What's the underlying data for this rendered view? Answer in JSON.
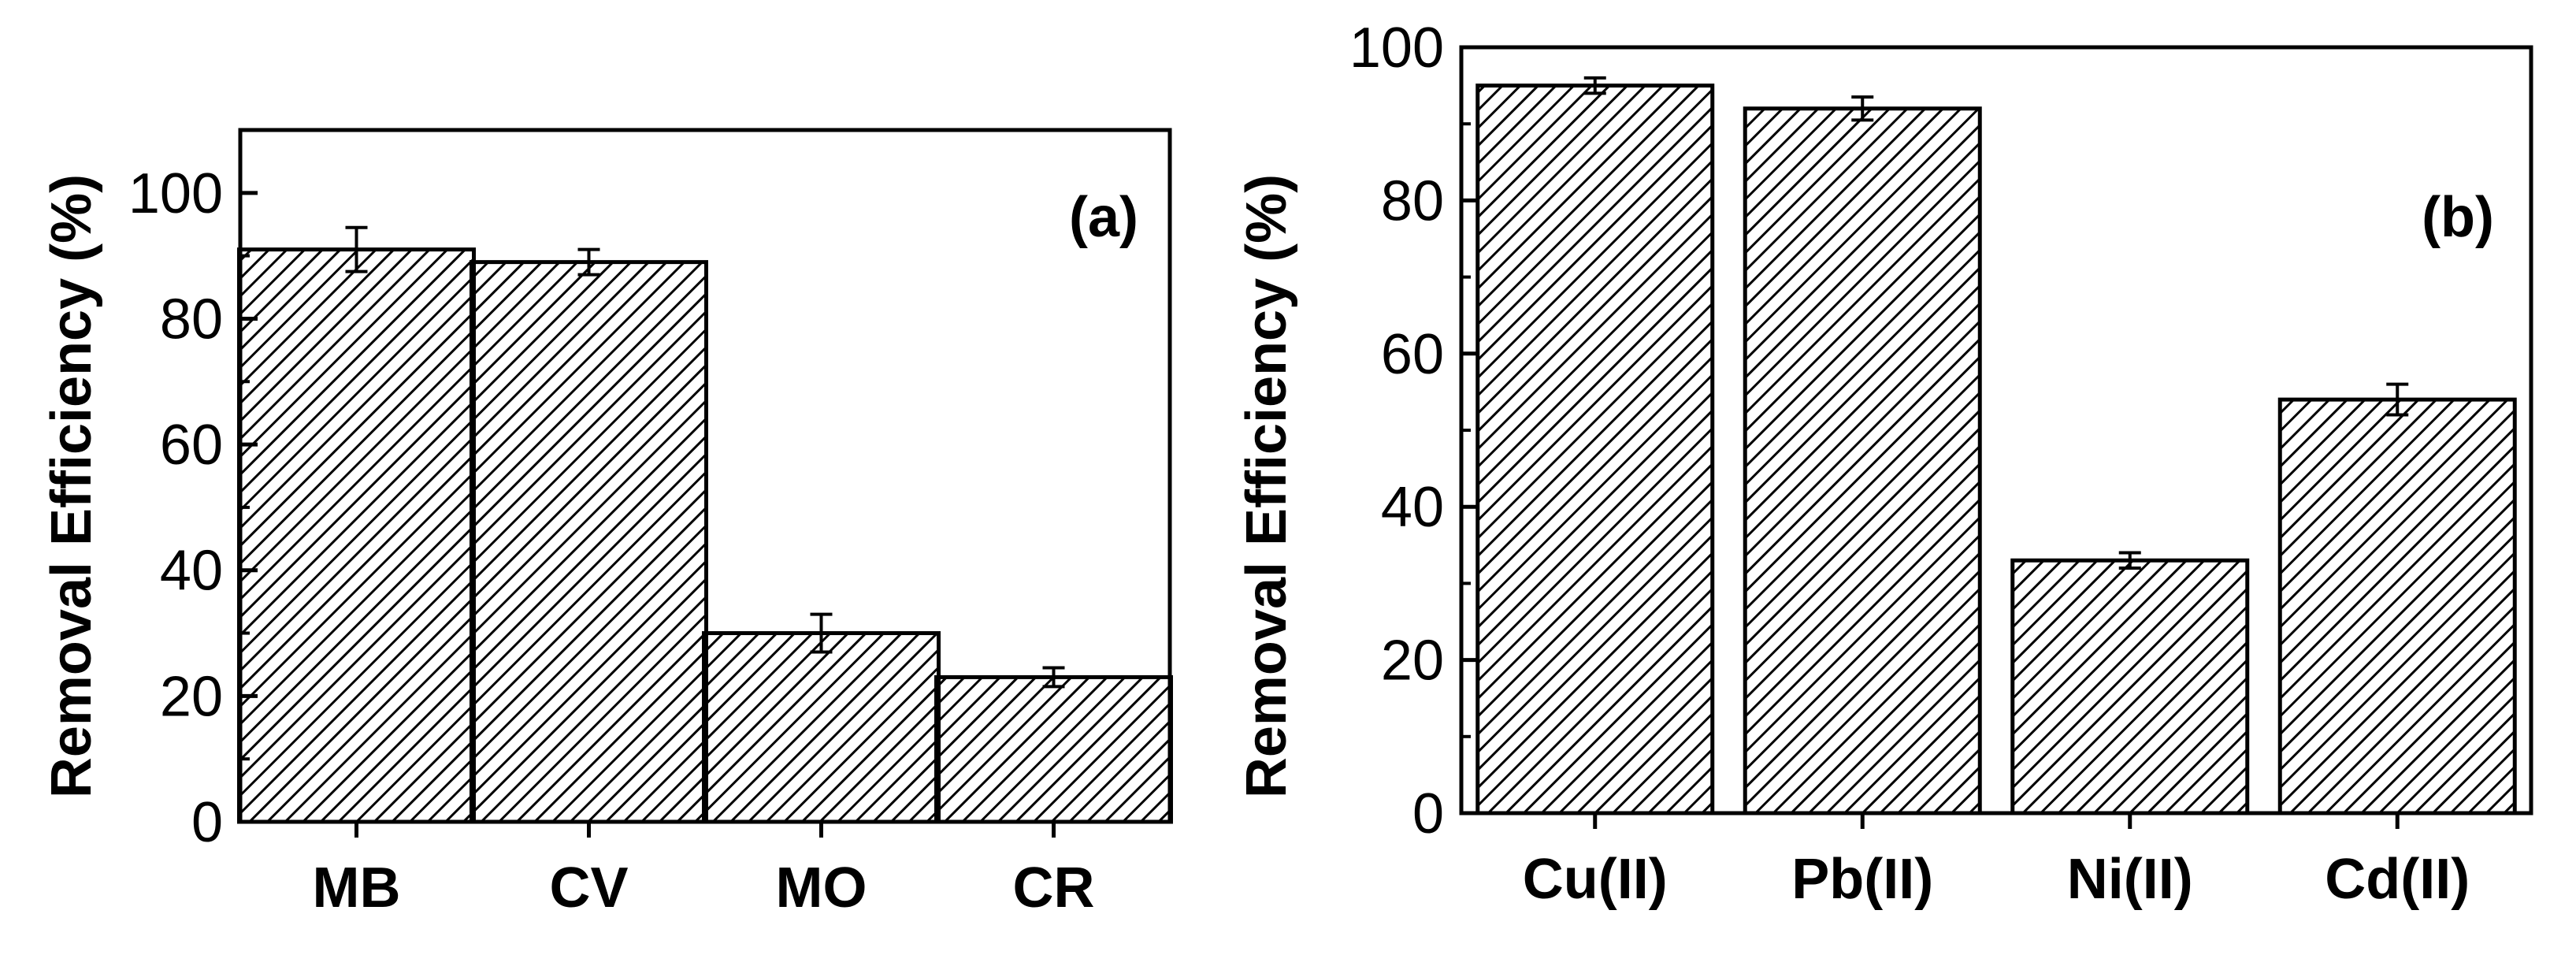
{
  "chart_data": [
    {
      "type": "bar",
      "panel_label": "(a)",
      "categories": [
        "MB",
        "CV",
        "MO",
        "CR"
      ],
      "values": [
        91,
        89,
        30,
        23
      ],
      "errors": [
        3.5,
        2,
        3,
        1.5
      ],
      "xlabel": "",
      "ylabel": "Removal Efficiency (%)",
      "ylim": [
        0,
        110
      ],
      "yticks": [
        0,
        20,
        40,
        60,
        80,
        100
      ],
      "yticks_labels": [
        "0",
        "20",
        "40",
        "60",
        "80",
        "100"
      ],
      "fill": "hatched"
    },
    {
      "type": "bar",
      "panel_label": "(b)",
      "categories": [
        "Cu(II)",
        "Pb(II)",
        "Ni(II)",
        "Cd(II)"
      ],
      "values": [
        95,
        92,
        33,
        54
      ],
      "errors": [
        1,
        1.5,
        1,
        2
      ],
      "xlabel": "",
      "ylabel": "Removal Efficiency (%)",
      "ylim": [
        0,
        100
      ],
      "yticks": [
        0,
        20,
        40,
        60,
        80,
        100
      ],
      "yticks_labels": [
        "0",
        "20",
        "40",
        "60",
        "80",
        "100"
      ],
      "fill": "hatched"
    }
  ],
  "colors": {
    "axis": "#000000",
    "bar_fill": "#ffffff",
    "hatch": "#000000"
  }
}
